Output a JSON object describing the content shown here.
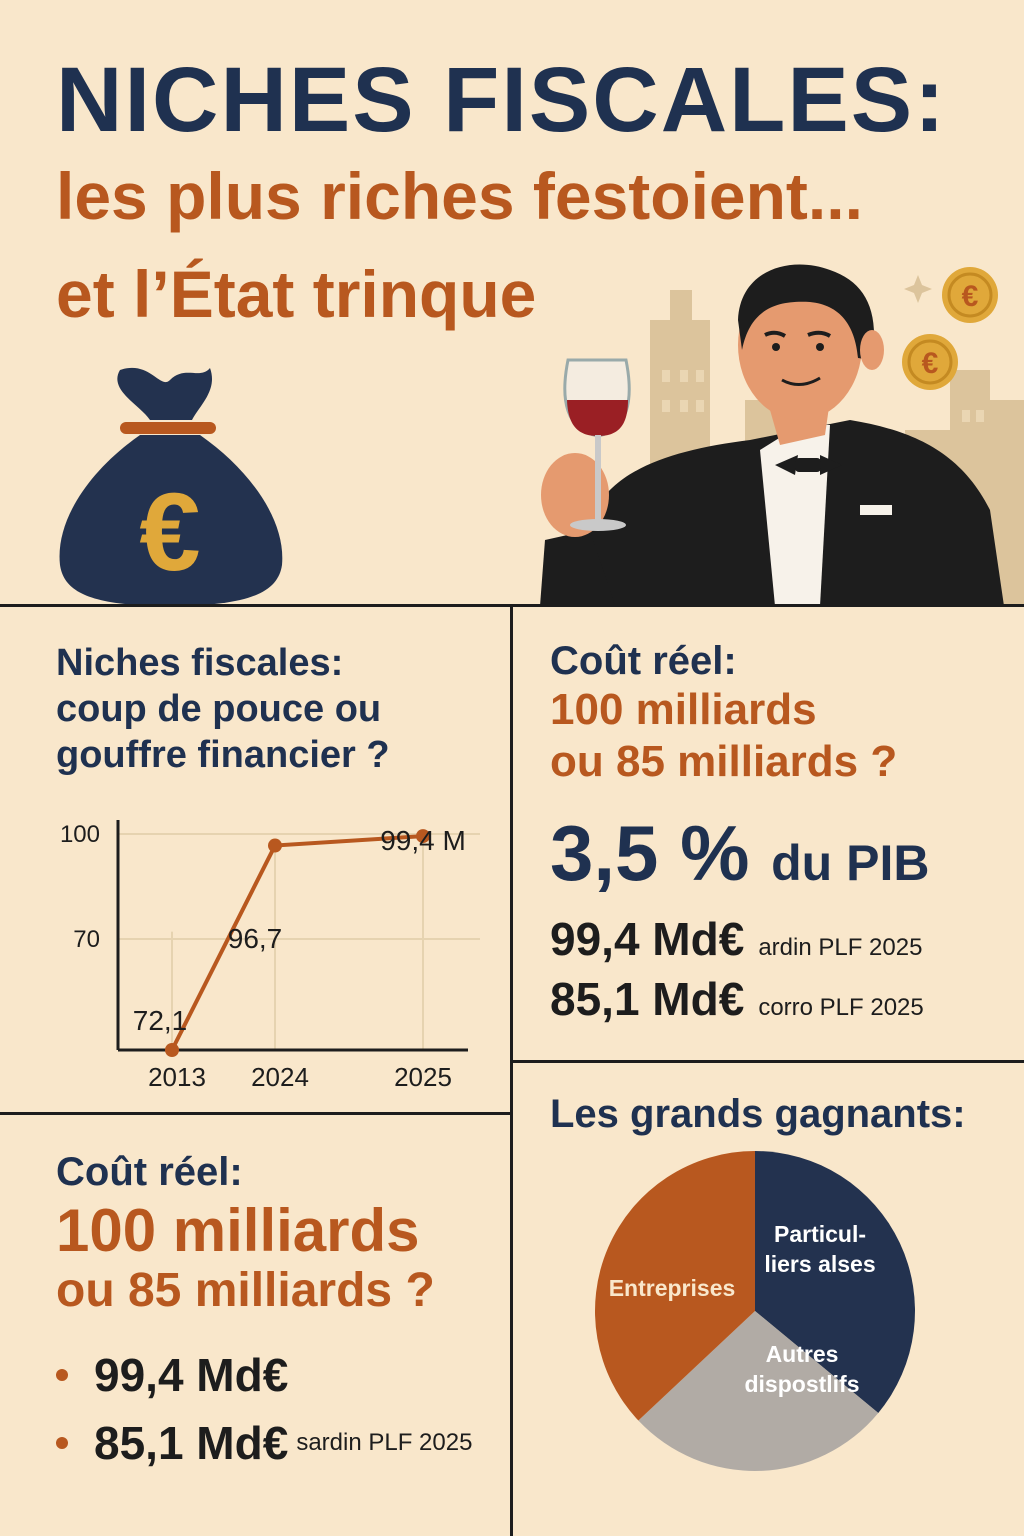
{
  "header": {
    "title": "NICHES FISCALES:",
    "subtitle_line1": "les plus riches festoient...",
    "subtitle_line2": "et l’État trinque"
  },
  "illustrations": {
    "money_bag_symbol": "€",
    "coin_symbol": "€"
  },
  "panel_evolution": {
    "heading_lines": [
      "Niches fiscales:",
      "coup de pouce ou",
      "gouffre financier ?"
    ]
  },
  "chart_data": {
    "type": "line",
    "x": [
      "2013",
      "2024",
      "2025"
    ],
    "series": [
      {
        "values": [
          72.1,
          96.7,
          99.4
        ]
      }
    ],
    "data_labels": [
      "72,1",
      "96,7",
      "99,4 M"
    ],
    "y_ticks": [
      "100",
      "70"
    ],
    "ylim": [
      70,
      100
    ],
    "grid": true,
    "colors": {
      "line": "#b8581f",
      "grid": "#e6d3b0",
      "axis": "#1d1d1d"
    }
  },
  "panel_cost_right": {
    "line1": "Coût réel:",
    "line2": "100 milliards",
    "line3": "ou 85 milliards ?",
    "big_value": "3,5 %",
    "big_suffix": "du PIB",
    "rows": [
      {
        "amount": "99,4 Md€",
        "note": "ardin PLF 2025"
      },
      {
        "amount": "85,1 Md€",
        "note": "corro PLF 2025"
      }
    ]
  },
  "panel_cost_left": {
    "line1": "Coût réel:",
    "line2": "100 milliards",
    "line3": "ou 85 milliards ?",
    "bullets": [
      {
        "amount": "99,4 Md€",
        "note": ""
      },
      {
        "amount": "85,1 Md€",
        "note": "sardin PLF 2025"
      }
    ]
  },
  "panel_winners": {
    "heading": "Les grands gagnants:",
    "pie": {
      "type": "pie",
      "slices": [
        {
          "label_lines": [
            "Particul-",
            "liers alses"
          ],
          "value": 36,
          "color": "#23324f",
          "label_color": "#ffffff"
        },
        {
          "label_lines": [
            "Autres",
            "dispostlifs"
          ],
          "value": 27,
          "color": "#b1aba5",
          "label_color": "#ffffff"
        },
        {
          "label_lines": [
            "Entreprises"
          ],
          "value": 37,
          "color": "#b8581f",
          "label_color": "#f9e7cb"
        }
      ]
    }
  },
  "colors": {
    "background": "#f9e7cb",
    "navy": "#1f3150",
    "orange": "#b8581f",
    "gold": "#e0a83a"
  }
}
